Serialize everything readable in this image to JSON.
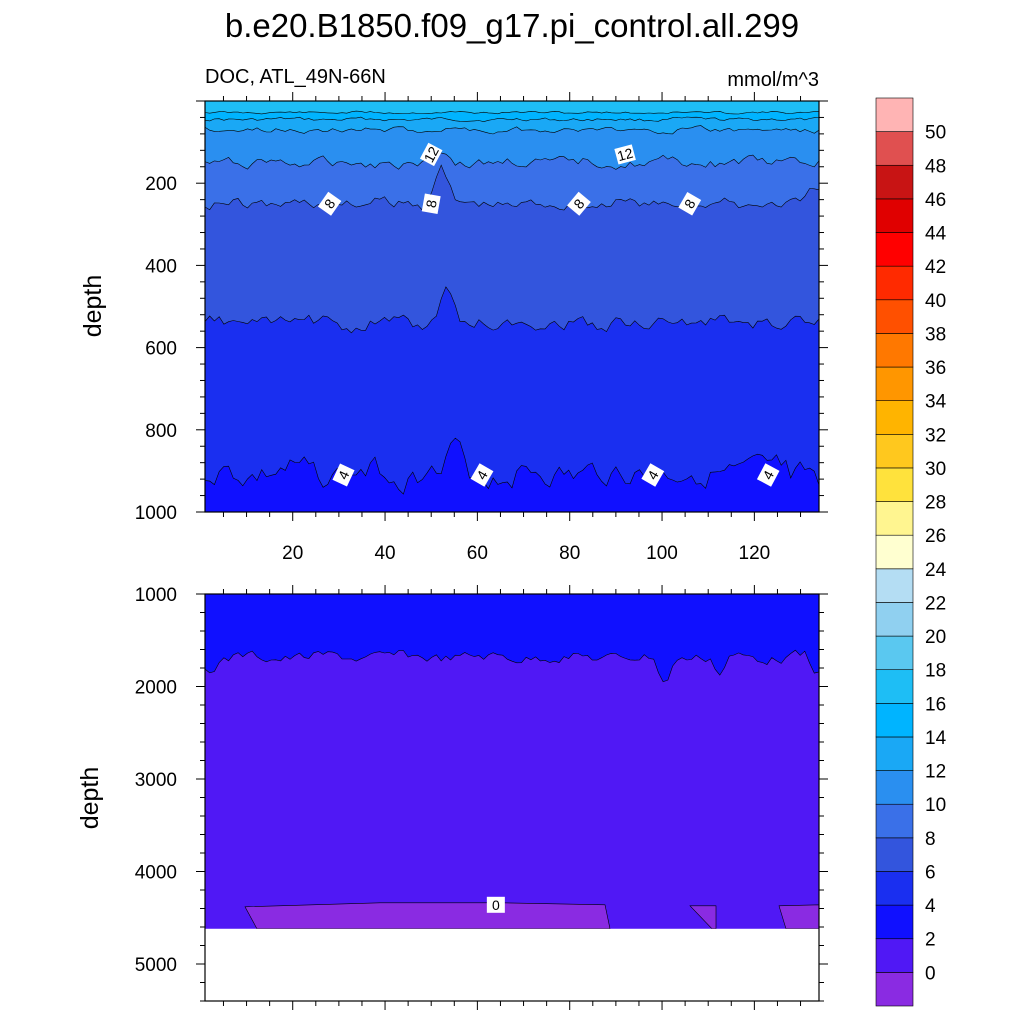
{
  "figure": {
    "title": "b.e20.B1850.f09_g17.pi_control.all.299",
    "left_string": "DOC, ATL_49N-66N",
    "right_string": "mmol/m^3"
  },
  "chart_data": [
    {
      "type": "contour",
      "panel": "upper",
      "xlabel": "",
      "ylabel": "depth",
      "xlim": [
        1,
        134
      ],
      "ylim": [
        1000,
        0
      ],
      "y_axis_reversed": true,
      "x_ticks": [
        20,
        40,
        60,
        80,
        100,
        120
      ],
      "y_ticks": [
        200,
        400,
        600,
        800,
        1000
      ],
      "contour_lines": [
        {
          "level": 12,
          "mean_depth": 150,
          "labels_at_x": [
            50,
            92
          ]
        },
        {
          "level": 8,
          "mean_depth": 250,
          "labels_at_x": [
            28,
            50,
            82,
            106
          ]
        },
        {
          "level": 6,
          "mean_depth": 540
        },
        {
          "level": 4,
          "mean_depth": 910,
          "labels_at_x": [
            31,
            61,
            98,
            123
          ]
        }
      ]
    },
    {
      "type": "contour",
      "panel": "lower",
      "xlabel": "",
      "ylabel": "depth",
      "xlim": [
        1,
        134
      ],
      "ylim": [
        5400,
        1000
      ],
      "y_axis_reversed": true,
      "y_ticks": [
        1000,
        2000,
        3000,
        4000,
        5000
      ],
      "bottom_depth": 4620,
      "contour_lines": [
        {
          "level": 2,
          "mean_depth": 1680
        },
        {
          "level": 0,
          "mean_depth": 4360,
          "labels_at_x": [
            64
          ]
        }
      ]
    }
  ],
  "colorbar": {
    "labels": [
      "0",
      "2",
      "4",
      "6",
      "8",
      "10",
      "12",
      "14",
      "16",
      "18",
      "20",
      "22",
      "24",
      "26",
      "28",
      "30",
      "32",
      "34",
      "36",
      "38",
      "40",
      "42",
      "44",
      "46",
      "48",
      "50"
    ],
    "colors": [
      "#8A2BE2",
      "#5018F5",
      "#1010FF",
      "#1A2FF0",
      "#3355DD",
      "#3A70E8",
      "#2A8FF0",
      "#1AA8F5",
      "#00B4FF",
      "#1EBEF5",
      "#5AC8F0",
      "#90D0F0",
      "#B4DDF3",
      "#FFFFD0",
      "#FFF590",
      "#FFE23C",
      "#FFC81E",
      "#FFB400",
      "#FF9600",
      "#FF7800",
      "#FF5000",
      "#FF2A00",
      "#FF0000",
      "#E00000",
      "#C81414",
      "#E05050",
      "#FFB4B4"
    ],
    "field_colors": {
      "below_0": "#8A2BE2",
      "c0_2": "#5018F5",
      "c2_4": "#1010FF",
      "c4_6": "#1A2FF0",
      "c6_8": "#3355DD",
      "c8_10": "#3A70E8",
      "c10_12": "#2A8FF0",
      "c12_14": "#1AA8F5",
      "c14_16": "#00B4FF",
      "c16_18": "#1EBEF5"
    }
  }
}
